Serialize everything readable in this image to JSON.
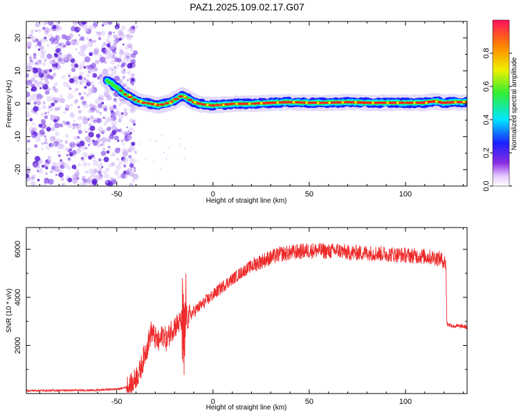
{
  "title": "PAZ1.2025.109.02.17.G07",
  "colors": {
    "snr_line": "#ee2a2a",
    "scatter": "#7a3ee6",
    "ridge_outer": "#1a22ff",
    "ridge_mid": "#00e5ff",
    "ridge_green": "#33ee33",
    "ridge_core": "#ff2222"
  },
  "chart_data": [
    {
      "type": "heatmap",
      "xlabel": "Height of straight line (km)",
      "ylabel": "Frequency (Hz)",
      "xlim": [
        -97,
        132
      ],
      "ylim": [
        -25,
        25
      ],
      "x_ticks": [
        -50,
        0,
        50,
        100
      ],
      "y_ticks": [
        -20,
        -10,
        0,
        10,
        20
      ],
      "colorbar": {
        "label": "Normalized spectral amplitude",
        "range": [
          0,
          1
        ],
        "ticks": [
          "0.0",
          "0.2",
          "0.4",
          "0.6",
          "0.8"
        ],
        "colormap": "rainbow (white-magenta-blue-cyan-green-yellow-red)"
      },
      "ridge": {
        "x": [
          -55,
          -50,
          -46,
          -43,
          -40,
          -36,
          -32,
          -28,
          -25,
          -22,
          -19,
          -16,
          -13,
          -10,
          -7,
          -4,
          0,
          5,
          10,
          20,
          30,
          40,
          50,
          60,
          70,
          80,
          90,
          100,
          110,
          115,
          120,
          126,
          132
        ],
        "y": [
          7,
          5,
          3,
          2,
          1,
          0.3,
          0,
          -0.5,
          0,
          0.5,
          1.5,
          2.5,
          1.5,
          0.5,
          0,
          -0.3,
          -0.5,
          -0.3,
          0,
          0,
          0.3,
          0.5,
          0.3,
          0.3,
          0.5,
          0.3,
          0.3,
          0.3,
          0.3,
          0.8,
          0.3,
          0.5,
          0.5
        ]
      },
      "noise_region_x": [
        -97,
        -44
      ]
    },
    {
      "type": "line",
      "xlabel": "Height of straight line (km)",
      "ylabel": "SNR (10 * v/v)",
      "xlim": [
        -97,
        132
      ],
      "ylim": [
        0,
        6900
      ],
      "x_ticks": [
        -50,
        0,
        50,
        100
      ],
      "y_ticks": [
        2000,
        4000,
        6000
      ],
      "series": [
        {
          "x": [
            -97,
            -80,
            -60,
            -48,
            -42,
            -40,
            -38,
            -36,
            -34,
            -32,
            -30,
            -28,
            -26,
            -24,
            -22,
            -20,
            -18,
            -16,
            -15,
            -14,
            -13,
            -12,
            -10,
            -5,
            0,
            5,
            10,
            15,
            20,
            25,
            30,
            35,
            40,
            45,
            50,
            55,
            60,
            65,
            70,
            80,
            90,
            100,
            110,
            115,
            118,
            120,
            121,
            121.5,
            125,
            130,
            132
          ],
          "y": [
            120,
            130,
            140,
            200,
            350,
            700,
            900,
            1500,
            2000,
            2600,
            2300,
            2100,
            2500,
            2200,
            2600,
            2800,
            2900,
            3000,
            1500,
            3200,
            3100,
            3250,
            3400,
            3750,
            4100,
            4450,
            4750,
            5050,
            5300,
            5500,
            5650,
            5800,
            5850,
            5900,
            5950,
            5950,
            5900,
            5950,
            5850,
            5850,
            5800,
            5750,
            5700,
            5650,
            5600,
            5500,
            5400,
            2900,
            2800,
            2800,
            2750
          ]
        }
      ]
    }
  ]
}
